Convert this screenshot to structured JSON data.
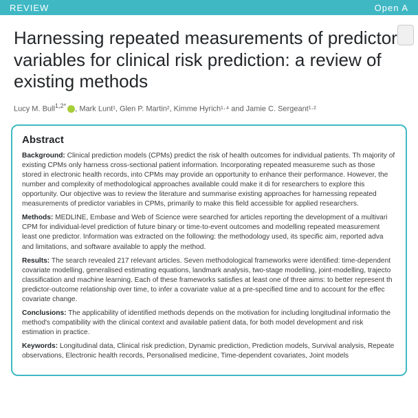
{
  "header": {
    "left": "REVIEW",
    "right": "Open A"
  },
  "title": "Harnessing repeated measurements of predictor variables for clinical risk prediction: a review of existing methods",
  "authors": {
    "lead": "Lucy M. Bull",
    "lead_aff": "1,2*",
    "rest": ", Mark Lunt¹, Glen P. Martin², Kimme Hyrich¹·⁴ and Jamie C. Sergeant¹·²"
  },
  "abstract_heading": "Abstract",
  "background": {
    "label": "Background:",
    "text": " Clinical prediction models (CPMs) predict the risk of health outcomes for individual patients. Th majority of existing CPMs only harness cross-sectional patient information. Incorporating repeated measureme such as those stored in electronic health records, into CPMs may provide an opportunity to enhance their performance. However, the number and complexity of methodological approaches available could make it di for researchers to explore this opportunity. Our objective was to review the literature and summarise existing approaches for harnessing repeated measurements of predictor variables in CPMs, primarily to make this field accessible for applied researchers."
  },
  "methods": {
    "label": "Methods:",
    "text": " MEDLINE, Embase and Web of Science were searched for articles reporting the development of a multivari CPM for individual-level prediction of future binary or time-to-event outcomes and modelling repeated measurement least one predictor. Information was extracted on the following: the methodology used, its specific aim, reported adva and limitations, and software available to apply the method."
  },
  "results": {
    "label": "Results:",
    "text": " The search revealed 217 relevant articles. Seven methodological frameworks were identified: time-dependent covariate modelling, generalised estimating equations, landmark analysis, two-stage modelling, joint-modelling, trajecto classification and machine learning. Each of these frameworks satisfies at least one of three aims: to better represent th predictor-outcome relationship over time, to infer a covariate value at a pre-specified time and to account for the effec covariate change."
  },
  "conclusions": {
    "label": "Conclusions:",
    "text": " The applicability of identified methods depends on the motivation for including longitudinal informatio the method's compatibility with the clinical context and available patient data, for both model development and risk estimation in practice."
  },
  "keywords": {
    "label": "Keywords:",
    "text": " Longitudinal data, Clinical risk prediction, Dynamic prediction, Prediction models, Survival analysis, Repeate observations, Electronic health records, Personalised medicine, Time-dependent covariates, Joint models"
  },
  "colors": {
    "teal": "#3fb8c4",
    "title_text": "#23272a",
    "body_text": "#3a3a3a",
    "author_text": "#5b5b5b",
    "orcid": "#a6ce39"
  }
}
